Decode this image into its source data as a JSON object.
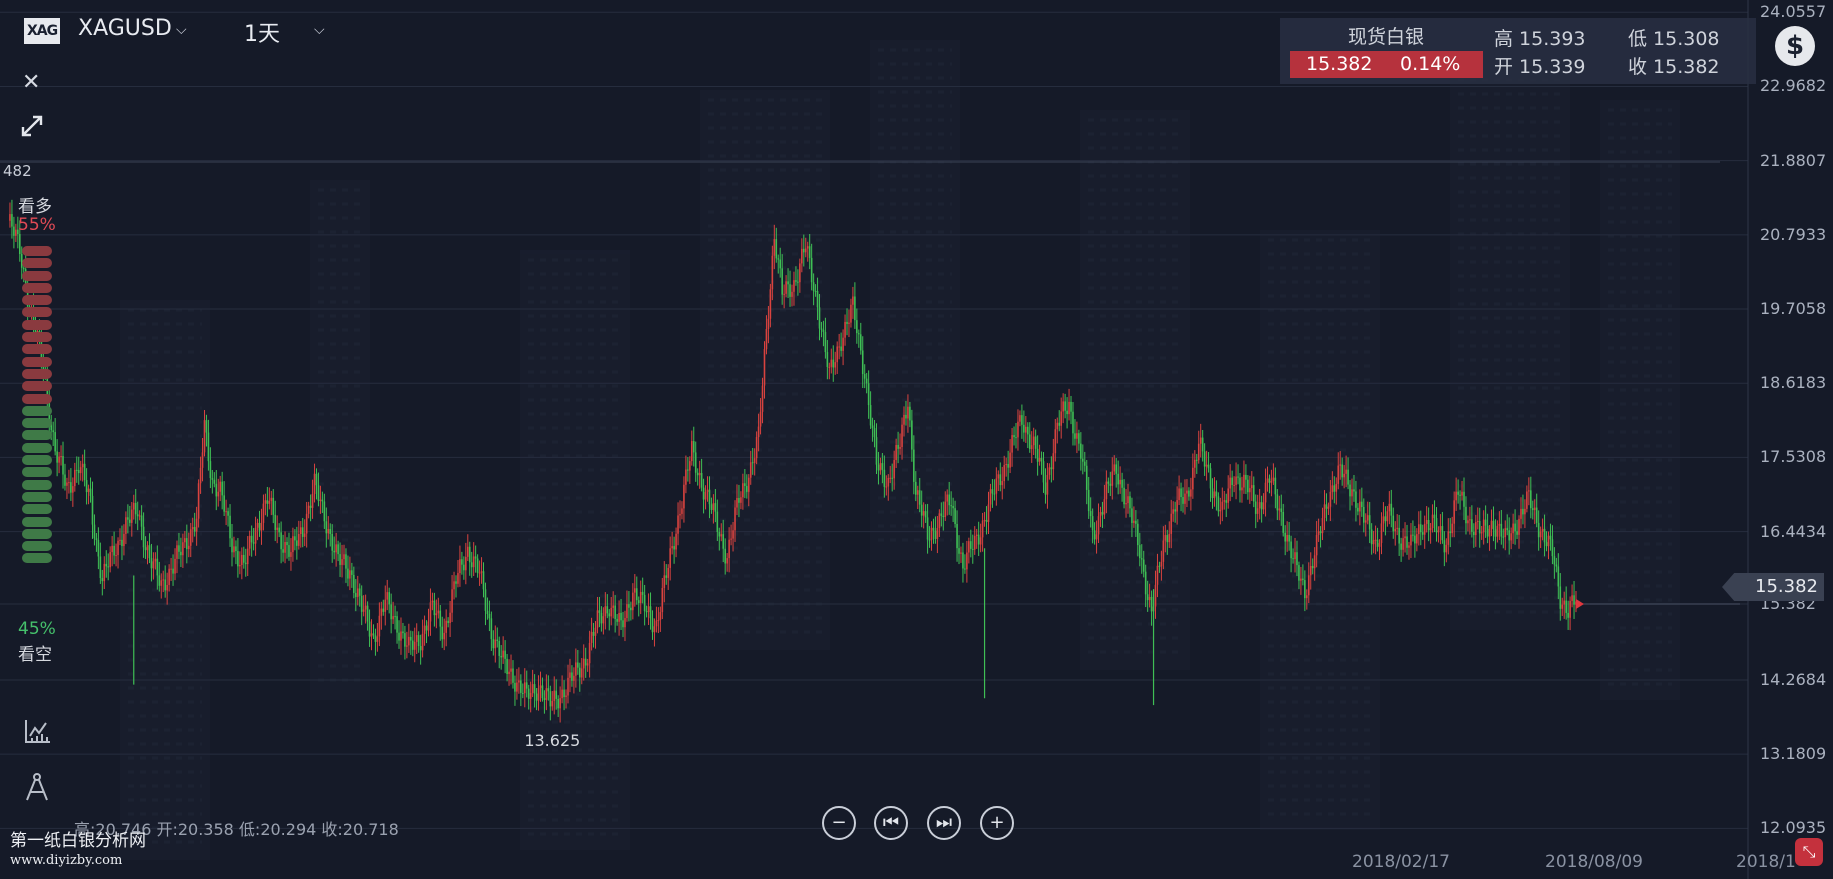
{
  "header": {
    "symbol_logo": "XAG",
    "symbol": "XAGUSD",
    "period": "1天",
    "icons": [
      "chevron-down-icon",
      "close-icon",
      "expand-icon",
      "indicator-icon",
      "drawing-tools-icon"
    ]
  },
  "sentiment": {
    "bull_label": "看多",
    "bull_pct": "55%",
    "bear_pct": "45%",
    "bear_label": "看空",
    "bull_fraction": 0.55,
    "bull_color": "#d84a52",
    "bear_color": "#3fae63"
  },
  "quote": {
    "name": "现货白银",
    "last": "15.382",
    "change_pct": "0.14%",
    "high": "高 15.393",
    "low": "低 15.308",
    "open": "开 15.339",
    "close": "收 15.382"
  },
  "price_tag": "15.382",
  "left_edge_label": "482",
  "ohlc_line": "高:20.746 开:20.358 低:20.294 收:20.718",
  "nav_buttons": [
    "−",
    "⏮",
    "⏭",
    "+"
  ],
  "watermark": {
    "title": "第一纸白银分析网",
    "url": "www.diyizby.com"
  },
  "colors": {
    "up": "#d9433f",
    "down": "#3fbf55",
    "background": "#151a28"
  },
  "chart_data": {
    "type": "candlestick",
    "y_tick_labels": [
      "24.0557",
      "22.9682",
      "21.8807",
      "20.7933",
      "19.7058",
      "18.6183",
      "17.5308",
      "16.4434",
      "15.382",
      "14.2684",
      "13.1809",
      "12.0935"
    ],
    "ylim": [
      11.6,
      24.06
    ],
    "x_tick_labels": [
      "2018/02/17",
      "2018/08/09",
      "2018/1"
    ],
    "annotations": [
      {
        "label": "13.625",
        "value": 13.625
      }
    ],
    "close_path": [
      {
        "x": 0,
        "y": 21.0
      },
      {
        "x": 6,
        "y": 20.6
      },
      {
        "x": 12,
        "y": 19.6
      },
      {
        "x": 18,
        "y": 18.9
      },
      {
        "x": 24,
        "y": 17.6
      },
      {
        "x": 30,
        "y": 17.1
      },
      {
        "x": 36,
        "y": 17.4
      },
      {
        "x": 42,
        "y": 16.9
      },
      {
        "x": 48,
        "y": 15.7
      },
      {
        "x": 54,
        "y": 16.2
      },
      {
        "x": 60,
        "y": 16.5
      },
      {
        "x": 66,
        "y": 16.8
      },
      {
        "x": 72,
        "y": 16.0
      },
      {
        "x": 78,
        "y": 15.7
      },
      {
        "x": 84,
        "y": 15.9
      },
      {
        "x": 90,
        "y": 16.3
      },
      {
        "x": 96,
        "y": 16.6
      },
      {
        "x": 100,
        "y": 18.0
      },
      {
        "x": 104,
        "y": 17.2
      },
      {
        "x": 108,
        "y": 17.0
      },
      {
        "x": 114,
        "y": 16.3
      },
      {
        "x": 120,
        "y": 15.9
      },
      {
        "x": 126,
        "y": 16.5
      },
      {
        "x": 132,
        "y": 16.9
      },
      {
        "x": 138,
        "y": 16.4
      },
      {
        "x": 144,
        "y": 16.1
      },
      {
        "x": 150,
        "y": 16.5
      },
      {
        "x": 156,
        "y": 17.1
      },
      {
        "x": 162,
        "y": 16.6
      },
      {
        "x": 168,
        "y": 16.0
      },
      {
        "x": 174,
        "y": 15.9
      },
      {
        "x": 180,
        "y": 15.3
      },
      {
        "x": 186,
        "y": 14.9
      },
      {
        "x": 192,
        "y": 15.4
      },
      {
        "x": 198,
        "y": 15.1
      },
      {
        "x": 204,
        "y": 14.7
      },
      {
        "x": 210,
        "y": 14.9
      },
      {
        "x": 216,
        "y": 15.3
      },
      {
        "x": 222,
        "y": 15.0
      },
      {
        "x": 228,
        "y": 15.7
      },
      {
        "x": 234,
        "y": 16.2
      },
      {
        "x": 240,
        "y": 15.8
      },
      {
        "x": 246,
        "y": 15.0
      },
      {
        "x": 252,
        "y": 14.5
      },
      {
        "x": 258,
        "y": 14.3
      },
      {
        "x": 264,
        "y": 14.0
      },
      {
        "x": 270,
        "y": 14.2
      },
      {
        "x": 276,
        "y": 13.9
      },
      {
        "x": 282,
        "y": 14.1
      },
      {
        "x": 288,
        "y": 14.3
      },
      {
        "x": 294,
        "y": 14.6
      },
      {
        "x": 300,
        "y": 15.1
      },
      {
        "x": 306,
        "y": 15.4
      },
      {
        "x": 312,
        "y": 15.0
      },
      {
        "x": 318,
        "y": 15.6
      },
      {
        "x": 324,
        "y": 15.3
      },
      {
        "x": 330,
        "y": 15.1
      },
      {
        "x": 336,
        "y": 15.9
      },
      {
        "x": 342,
        "y": 16.8
      },
      {
        "x": 348,
        "y": 17.6
      },
      {
        "x": 354,
        "y": 17.1
      },
      {
        "x": 360,
        "y": 16.6
      },
      {
        "x": 366,
        "y": 16.1
      },
      {
        "x": 372,
        "y": 16.9
      },
      {
        "x": 378,
        "y": 17.4
      },
      {
        "x": 382,
        "y": 17.8
      },
      {
        "x": 386,
        "y": 19.4
      },
      {
        "x": 390,
        "y": 20.8
      },
      {
        "x": 394,
        "y": 19.9
      },
      {
        "x": 400,
        "y": 20.1
      },
      {
        "x": 406,
        "y": 20.6
      },
      {
        "x": 412,
        "y": 19.8
      },
      {
        "x": 418,
        "y": 18.7
      },
      {
        "x": 424,
        "y": 19.3
      },
      {
        "x": 430,
        "y": 19.7
      },
      {
        "x": 436,
        "y": 18.8
      },
      {
        "x": 442,
        "y": 17.4
      },
      {
        "x": 448,
        "y": 17.2
      },
      {
        "x": 454,
        "y": 17.7
      },
      {
        "x": 458,
        "y": 18.4
      },
      {
        "x": 462,
        "y": 17.0
      },
      {
        "x": 468,
        "y": 16.4
      },
      {
        "x": 474,
        "y": 16.6
      },
      {
        "x": 480,
        "y": 16.9
      },
      {
        "x": 486,
        "y": 15.9
      },
      {
        "x": 492,
        "y": 16.3
      },
      {
        "x": 498,
        "y": 16.7
      },
      {
        "x": 504,
        "y": 17.2
      },
      {
        "x": 510,
        "y": 17.6
      },
      {
        "x": 516,
        "y": 18.1
      },
      {
        "x": 522,
        "y": 17.7
      },
      {
        "x": 528,
        "y": 17.1
      },
      {
        "x": 534,
        "y": 18.0
      },
      {
        "x": 540,
        "y": 18.3
      },
      {
        "x": 546,
        "y": 17.6
      },
      {
        "x": 552,
        "y": 16.4
      },
      {
        "x": 558,
        "y": 16.9
      },
      {
        "x": 564,
        "y": 17.4
      },
      {
        "x": 570,
        "y": 16.8
      },
      {
        "x": 576,
        "y": 16.2
      },
      {
        "x": 582,
        "y": 15.2
      },
      {
        "x": 588,
        "y": 16.3
      },
      {
        "x": 594,
        "y": 16.8
      },
      {
        "x": 600,
        "y": 17.0
      },
      {
        "x": 606,
        "y": 17.7
      },
      {
        "x": 612,
        "y": 17.2
      },
      {
        "x": 618,
        "y": 16.7
      },
      {
        "x": 624,
        "y": 17.3
      },
      {
        "x": 630,
        "y": 17.1
      },
      {
        "x": 636,
        "y": 16.8
      },
      {
        "x": 642,
        "y": 17.2
      },
      {
        "x": 648,
        "y": 16.7
      },
      {
        "x": 654,
        "y": 16.0
      },
      {
        "x": 660,
        "y": 15.6
      },
      {
        "x": 666,
        "y": 16.2
      },
      {
        "x": 672,
        "y": 17.0
      },
      {
        "x": 678,
        "y": 17.3
      },
      {
        "x": 684,
        "y": 17.1
      },
      {
        "x": 690,
        "y": 16.6
      },
      {
        "x": 696,
        "y": 16.3
      },
      {
        "x": 702,
        "y": 16.7
      },
      {
        "x": 708,
        "y": 16.4
      },
      {
        "x": 714,
        "y": 16.2
      },
      {
        "x": 720,
        "y": 16.6
      },
      {
        "x": 726,
        "y": 16.5
      },
      {
        "x": 732,
        "y": 16.3
      },
      {
        "x": 738,
        "y": 17.0
      },
      {
        "x": 744,
        "y": 16.6
      },
      {
        "x": 750,
        "y": 16.4
      },
      {
        "x": 756,
        "y": 16.6
      },
      {
        "x": 762,
        "y": 16.3
      },
      {
        "x": 768,
        "y": 16.6
      },
      {
        "x": 774,
        "y": 16.9
      },
      {
        "x": 780,
        "y": 16.5
      },
      {
        "x": 786,
        "y": 16.1
      },
      {
        "x": 790,
        "y": 15.5
      },
      {
        "x": 794,
        "y": 15.3
      },
      {
        "x": 798,
        "y": 15.4
      }
    ]
  }
}
